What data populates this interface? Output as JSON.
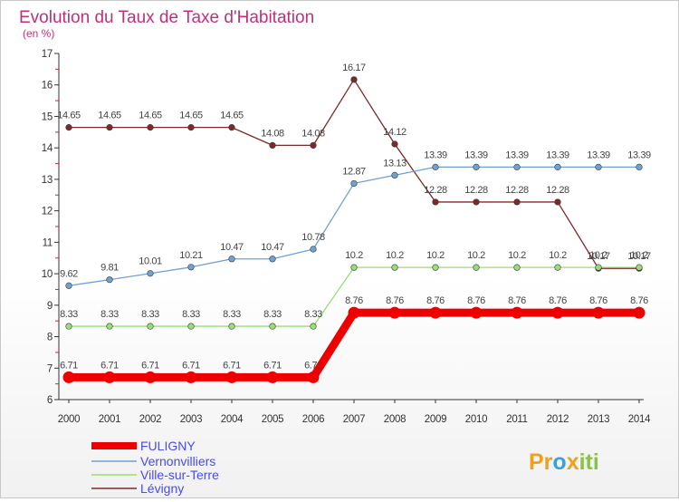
{
  "chart_data": {
    "type": "line",
    "title": "Evolution du Taux de Taxe d'Habitation",
    "subtitle": "(en %)",
    "x": [
      "2000",
      "2001",
      "2002",
      "2003",
      "2004",
      "2005",
      "2006",
      "2007",
      "2008",
      "2009",
      "2010",
      "2011",
      "2012",
      "2013",
      "2014"
    ],
    "yticks": [
      "6",
      "7",
      "8",
      "9",
      "10",
      "11",
      "12",
      "13",
      "14",
      "15",
      "16",
      "17"
    ],
    "ylim": [
      6,
      17
    ],
    "grid": false,
    "legend_position": "bottom-left",
    "series": [
      {
        "name": "FULIGNY",
        "color": "#ee0000",
        "values": [
          6.71,
          6.71,
          6.71,
          6.71,
          6.71,
          6.71,
          6.71,
          8.76,
          8.76,
          8.76,
          8.76,
          8.76,
          8.76,
          8.76,
          8.76
        ],
        "labels": [
          "6.71",
          "6.71",
          "6.71",
          "6.71",
          "6.71",
          "6.71",
          "6.71",
          "8.76",
          "8.76",
          "8.76",
          "8.76",
          "8.76",
          "8.76",
          "8.76",
          "8.76"
        ]
      },
      {
        "name": "Vernonvilliers",
        "color": "#6fa1d1",
        "values": [
          9.62,
          9.81,
          10.01,
          10.21,
          10.47,
          10.47,
          10.78,
          12.87,
          13.13,
          13.39,
          13.39,
          13.39,
          13.39,
          13.39,
          13.39
        ],
        "labels": [
          "9.62",
          "9.81",
          "10.01",
          "10.21",
          "10.47",
          "10.47",
          "10.78",
          "12.87",
          "13.13",
          "13.39",
          "13.39",
          "13.39",
          "13.39",
          "13.39",
          "13.39"
        ]
      },
      {
        "name": "Ville-sur-Terre",
        "color": "#99dd77",
        "values": [
          8.33,
          8.33,
          8.33,
          8.33,
          8.33,
          8.33,
          8.33,
          10.2,
          10.2,
          10.2,
          10.2,
          10.2,
          10.2,
          10.2,
          10.2
        ],
        "labels": [
          "8.33",
          "8.33",
          "8.33",
          "8.33",
          "8.33",
          "8.33",
          "8.33",
          "10.2",
          "10.2",
          "10.2",
          "10.2",
          "10.2",
          "10.2",
          "10.2",
          "10.2"
        ]
      },
      {
        "name": "Lévigny",
        "color": "#7b2a2a",
        "values": [
          14.65,
          14.65,
          14.65,
          14.65,
          14.65,
          14.08,
          14.08,
          16.17,
          14.12,
          12.28,
          12.28,
          12.28,
          12.28,
          10.17,
          10.17
        ],
        "labels": [
          "14.65",
          "14.65",
          "14.65",
          "14.65",
          "14.65",
          "14.08",
          "14.08",
          "16.17",
          "14.12",
          "12.28",
          "12.28",
          "12.28",
          "12.28",
          "10.17",
          "10.17"
        ]
      }
    ]
  },
  "logo": {
    "part1": "Pr",
    "part2": "o",
    "part3": "x",
    "part4": "iti"
  }
}
